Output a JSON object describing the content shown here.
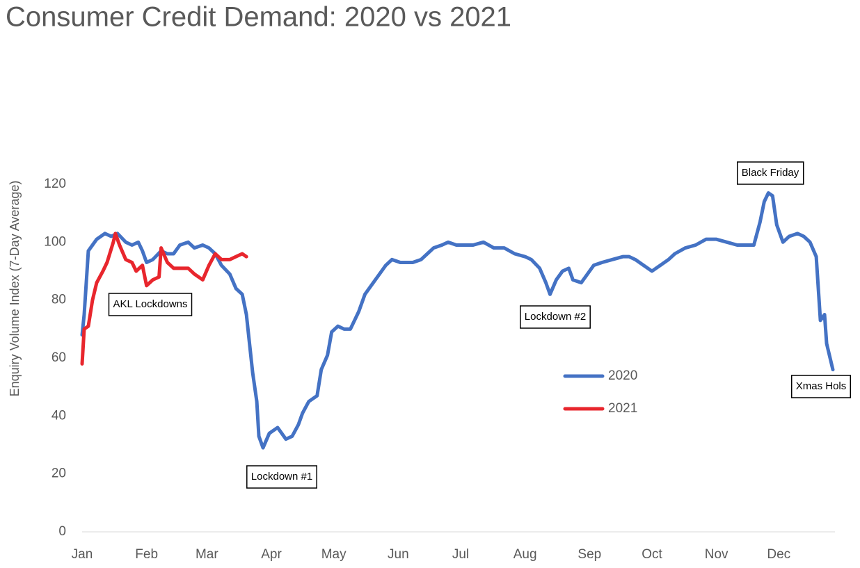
{
  "chart_data": {
    "type": "line",
    "title": "Consumer Credit Demand: 2020 vs 2021",
    "y_label": "Enquiry Volume Index (7-Day Average)",
    "xlim": [
      0,
      362
    ],
    "xticks": [
      {
        "value": 0,
        "label": "Jan"
      },
      {
        "value": 31,
        "label": "Feb"
      },
      {
        "value": 60,
        "label": "Mar"
      },
      {
        "value": 91,
        "label": "Apr"
      },
      {
        "value": 121,
        "label": "May"
      },
      {
        "value": 152,
        "label": "Jun"
      },
      {
        "value": 182,
        "label": "Jul"
      },
      {
        "value": 213,
        "label": "Aug"
      },
      {
        "value": 244,
        "label": "Sep"
      },
      {
        "value": 274,
        "label": "Oct"
      },
      {
        "value": 305,
        "label": "Nov"
      },
      {
        "value": 335,
        "label": "Dec"
      }
    ],
    "ylim": [
      0,
      120
    ],
    "yticks": [
      0,
      20,
      40,
      60,
      80,
      100,
      120
    ],
    "legend": "center",
    "series": [
      {
        "name": "2020",
        "color": "#4472c4",
        "x": [
          0,
          1,
          3,
          5,
          7,
          11,
          14,
          17,
          21,
          24,
          27,
          29,
          31,
          34,
          38,
          41,
          44,
          47,
          51,
          54,
          58,
          61,
          64,
          67,
          71,
          74,
          77,
          79,
          82,
          84,
          85,
          87,
          90,
          94,
          96,
          98,
          101,
          104,
          106,
          109,
          113,
          115,
          118,
          120,
          123,
          126,
          129,
          133,
          136,
          139,
          143,
          146,
          149,
          153,
          156,
          159,
          163,
          166,
          169,
          173,
          176,
          180,
          183,
          188,
          193,
          198,
          203,
          208,
          213,
          216,
          220,
          223,
          225,
          228,
          231,
          234,
          236,
          240,
          243,
          246,
          250,
          255,
          260,
          263,
          266,
          270,
          274,
          278,
          282,
          285,
          290,
          295,
          300,
          305,
          310,
          315,
          320,
          323,
          326,
          328,
          330,
          332,
          334,
          337,
          340,
          344,
          347,
          350,
          353,
          355,
          357,
          358,
          361
        ],
        "values": [
          68,
          75,
          97,
          99,
          101,
          103,
          102,
          103,
          100,
          99,
          100,
          97,
          93,
          94,
          97,
          96,
          96,
          99,
          100,
          98,
          99,
          98,
          96,
          92,
          89,
          84,
          82,
          75,
          55,
          45,
          33,
          29,
          34,
          36,
          34,
          32,
          33,
          37,
          41,
          45,
          47,
          56,
          61,
          69,
          71,
          70,
          70,
          76,
          82,
          85,
          89,
          92,
          94,
          93,
          93,
          93,
          94,
          96,
          98,
          99,
          100,
          99,
          99,
          99,
          100,
          98,
          98,
          96,
          95,
          94,
          91,
          86,
          82,
          87,
          90,
          91,
          87,
          86,
          89,
          92,
          93,
          94,
          95,
          95,
          94,
          92,
          90,
          92,
          94,
          96,
          98,
          99,
          101,
          101,
          100,
          99,
          99,
          99,
          107,
          114,
          117,
          116,
          106,
          100,
          102,
          103,
          102,
          100,
          95,
          73,
          75,
          65,
          56
        ]
      },
      {
        "name": "2021",
        "color": "#e8262d",
        "x": [
          0,
          1,
          3,
          5,
          7,
          10,
          12,
          15,
          16,
          18,
          21,
          24,
          26,
          29,
          31,
          34,
          37,
          38,
          41,
          44,
          47,
          51,
          54,
          58,
          61,
          64,
          67,
          71,
          74,
          77,
          79
        ],
        "values": [
          58,
          70,
          71,
          80,
          86,
          90,
          93,
          100,
          103,
          99,
          94,
          93,
          90,
          92,
          85,
          87,
          88,
          98,
          93,
          91,
          91,
          91,
          89,
          87,
          92,
          96,
          94,
          94,
          95,
          96,
          95
        ]
      }
    ],
    "annotations": [
      "AKL Lockdowns",
      "Lockdown #1",
      "Lockdown #2",
      "Black Friday",
      "Xmas Hols"
    ]
  }
}
